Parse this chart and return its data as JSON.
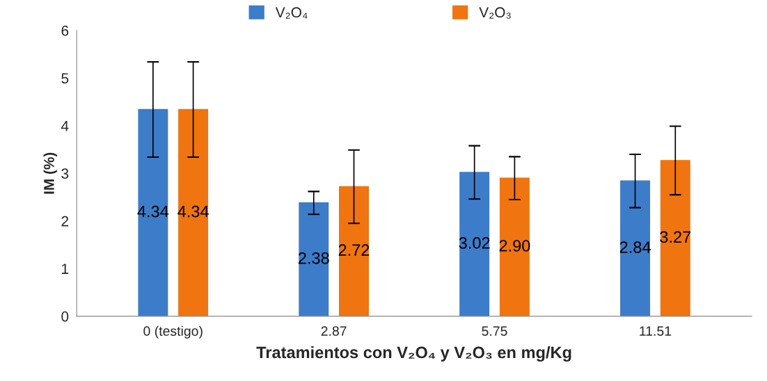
{
  "chart_data": {
    "type": "bar",
    "xlabel": "Tratamientos con V₂O₄ y V₂O₃ en mg/Kg",
    "ylabel": "IM (%)",
    "categories": [
      "0 (testigo)",
      "2.87",
      "5.75",
      "11.51"
    ],
    "series": [
      {
        "name": "V₂O₄",
        "color": "#3d7cc9",
        "values": [
          4.34,
          2.38,
          3.02,
          2.84
        ],
        "errors": [
          1.0,
          0.24,
          0.56,
          0.56
        ],
        "value_labels": [
          "4.34",
          "2.38",
          "3.02",
          "2.84"
        ]
      },
      {
        "name": "V₂O₃",
        "color": "#f0740f",
        "values": [
          4.34,
          2.72,
          2.9,
          3.27
        ],
        "errors": [
          1.0,
          0.77,
          0.45,
          0.72
        ],
        "value_labels": [
          "4.34",
          "2.72",
          "2.90",
          "3.27"
        ]
      }
    ],
    "ylim": [
      0,
      6
    ],
    "yticks": [
      0,
      1,
      2,
      3,
      4,
      5,
      6
    ],
    "grid": false,
    "legend": "top"
  }
}
